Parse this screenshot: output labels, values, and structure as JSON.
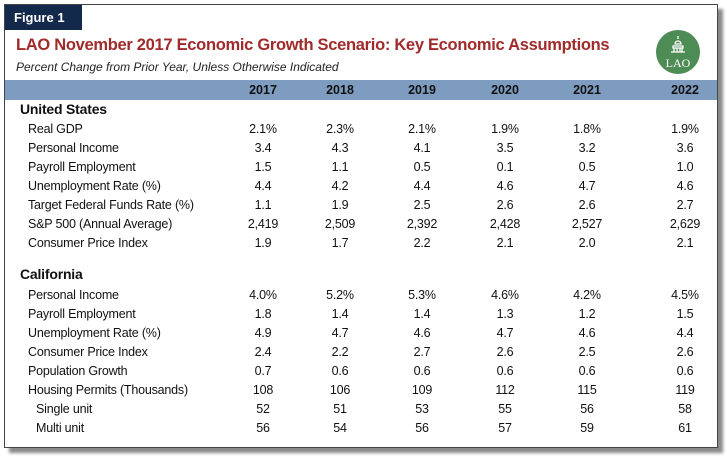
{
  "figure_label": "Figure 1",
  "title": "LAO November 2017 Economic Growth Scenario: Key Economic Assumptions",
  "subtitle": "Percent Change from Prior Year, Unless Otherwise Indicated",
  "logo_text": "LAO",
  "colors": {
    "title": "#a12a2a",
    "tab": "#13294b",
    "header_band": "#7e9cc0",
    "logo": "#4e8c55"
  },
  "years": [
    "2017",
    "2018",
    "2019",
    "2020",
    "2021",
    "2022"
  ],
  "sections": [
    {
      "name": "United States",
      "rows": [
        {
          "label": "Real GDP",
          "values": [
            "2.1%",
            "2.3%",
            "2.1%",
            "1.9%",
            "1.8%",
            "1.9%"
          ]
        },
        {
          "label": "Personal Income",
          "values": [
            "3.4",
            "4.3",
            "4.1",
            "3.5",
            "3.2",
            "3.6"
          ]
        },
        {
          "label": "Payroll Employment",
          "values": [
            "1.5",
            "1.1",
            "0.5",
            "0.1",
            "0.5",
            "1.0"
          ]
        },
        {
          "label": "Unemployment Rate (%)",
          "values": [
            "4.4",
            "4.2",
            "4.4",
            "4.6",
            "4.7",
            "4.6"
          ]
        },
        {
          "label": "Target Federal Funds Rate (%)",
          "values": [
            "1.1",
            "1.9",
            "2.5",
            "2.6",
            "2.6",
            "2.7"
          ]
        },
        {
          "label": "S&P 500 (Annual Average)",
          "values": [
            "2,419",
            "2,509",
            "2,392",
            "2,428",
            "2,527",
            "2,629"
          ]
        },
        {
          "label": "Consumer Price Index",
          "values": [
            "1.9",
            "1.7",
            "2.2",
            "2.1",
            "2.0",
            "2.1"
          ]
        }
      ]
    },
    {
      "name": "California",
      "rows": [
        {
          "label": "Personal Income",
          "values": [
            "4.0%",
            "5.2%",
            "5.3%",
            "4.6%",
            "4.2%",
            "4.5%"
          ]
        },
        {
          "label": "Payroll Employment",
          "values": [
            "1.8",
            "1.4",
            "1.4",
            "1.3",
            "1.2",
            "1.5"
          ]
        },
        {
          "label": "Unemployment Rate (%)",
          "values": [
            "4.9",
            "4.7",
            "4.6",
            "4.7",
            "4.6",
            "4.4"
          ]
        },
        {
          "label": "Consumer Price Index",
          "values": [
            "2.4",
            "2.2",
            "2.7",
            "2.6",
            "2.5",
            "2.6"
          ]
        },
        {
          "label": "Population Growth",
          "values": [
            "0.7",
            "0.6",
            "0.6",
            "0.6",
            "0.6",
            "0.6"
          ]
        },
        {
          "label": "Housing Permits (Thousands)",
          "values": [
            "108",
            "106",
            "109",
            "112",
            "115",
            "119"
          ]
        },
        {
          "label": "Single unit",
          "values": [
            "52",
            "51",
            "53",
            "55",
            "56",
            "58"
          ],
          "sub": true
        },
        {
          "label": "Multi unit",
          "values": [
            "56",
            "54",
            "56",
            "57",
            "59",
            "61"
          ],
          "sub": true
        }
      ]
    }
  ]
}
